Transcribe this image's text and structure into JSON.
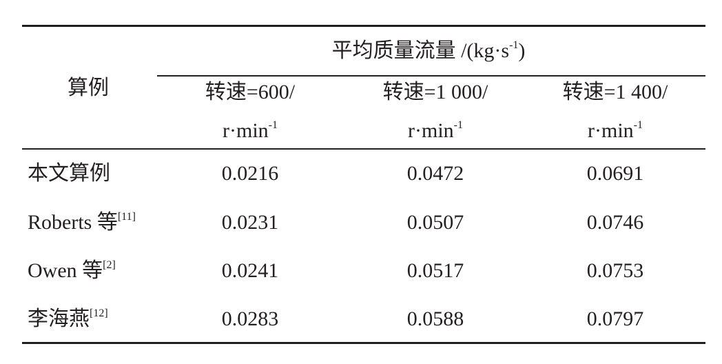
{
  "table": {
    "row_header": "算例",
    "group_header": {
      "text": "平均质量流量 /(kg·s",
      "sup": "-1",
      "close": ")"
    },
    "columns": [
      {
        "line1": "转速=600/",
        "line2": "r·min",
        "sup": "-1"
      },
      {
        "line1": "转速=1 000/",
        "line2": "r·min",
        "sup": "-1"
      },
      {
        "line1": "转速=1 400/",
        "line2": "r·min",
        "sup": "-1"
      }
    ],
    "rows": [
      {
        "label": "本文算例",
        "cells": [
          0.0216,
          0.0472,
          0.0691
        ]
      },
      {
        "label": "Roberts 等",
        "ref": "[11]",
        "cells": [
          0.0231,
          0.0507,
          0.0746
        ]
      },
      {
        "label": "Owen 等",
        "ref": "[2]",
        "cells": [
          0.0241,
          0.0517,
          0.0753
        ]
      },
      {
        "label": "李海燕",
        "ref": "[12]",
        "cells": [
          0.0283,
          0.0588,
          0.0797
        ]
      }
    ]
  }
}
